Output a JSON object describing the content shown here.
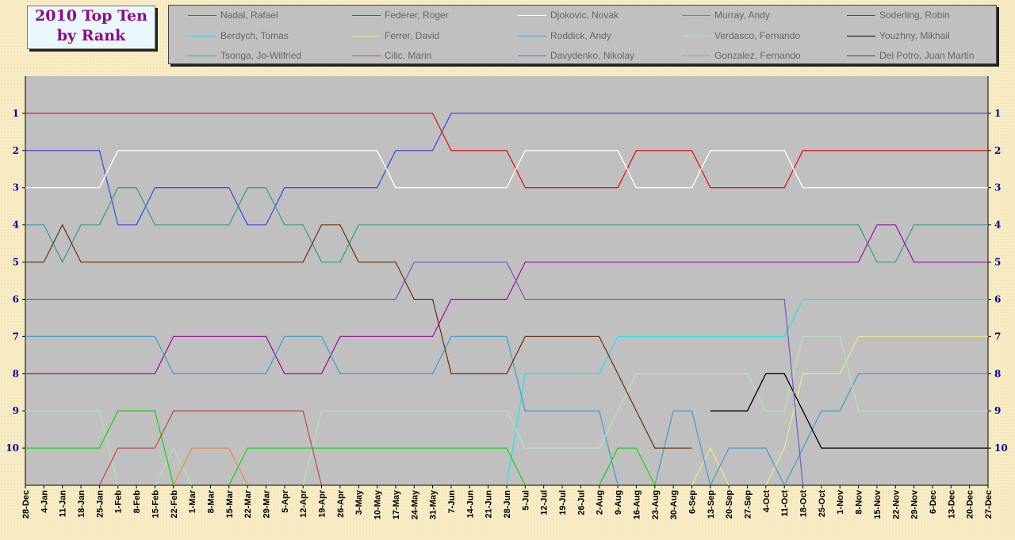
{
  "title": {
    "line1": "2010 Top Ten",
    "line2": "by Rank"
  },
  "chart_data": {
    "type": "line",
    "title": "2010 Top Ten by Rank",
    "y_axis": {
      "ticks": [
        1,
        2,
        3,
        4,
        5,
        6,
        7,
        8,
        9,
        10
      ],
      "range": [
        0,
        11
      ],
      "inverted": true
    },
    "grid": false,
    "legend_position": "top",
    "x": [
      "28-Dec",
      "4-Jan",
      "11-Jan",
      "18-Jan",
      "25-Jan",
      "1-Feb",
      "8-Feb",
      "15-Feb",
      "22-Feb",
      "1-Mar",
      "8-Mar",
      "15-Mar",
      "22-Mar",
      "29-Mar",
      "5-Apr",
      "12-Apr",
      "19-Apr",
      "26-Apr",
      "3-May",
      "10-May",
      "17-May",
      "24-May",
      "31-May",
      "7-Jun",
      "14-Jun",
      "21-Jun",
      "28-Jun",
      "5-Jul",
      "12-Jul",
      "19-Jul",
      "26-Jul",
      "2-Aug",
      "9-Aug",
      "16-Aug",
      "23-Aug",
      "30-Aug",
      "6-Sep",
      "13-Sep",
      "20-Sep",
      "27-Sep",
      "4-Oct",
      "11-Oct",
      "18-Oct",
      "25-Oct",
      "1-Nov",
      "8-Nov",
      "15-Nov",
      "22-Nov",
      "29-Nov",
      "6-Dec",
      "13-Dec",
      "20-Dec",
      "27-Dec"
    ],
    "series": [
      {
        "name": "Nadal, Rafael",
        "color": "#4a4ae0",
        "values": [
          2,
          2,
          2,
          2,
          2,
          4,
          4,
          3,
          3,
          3,
          3,
          3,
          4,
          4,
          3,
          3,
          3,
          3,
          3,
          3,
          2,
          2,
          2,
          1,
          1,
          1,
          1,
          1,
          1,
          1,
          1,
          1,
          1,
          1,
          1,
          1,
          1,
          1,
          1,
          1,
          1,
          1,
          1,
          1,
          1,
          1,
          1,
          1,
          1,
          1,
          1,
          1,
          1
        ]
      },
      {
        "name": "Federer, Roger",
        "color": "#e01818",
        "values": [
          1,
          1,
          1,
          1,
          1,
          1,
          1,
          1,
          1,
          1,
          1,
          1,
          1,
          1,
          1,
          1,
          1,
          1,
          1,
          1,
          1,
          1,
          1,
          2,
          2,
          2,
          2,
          3,
          3,
          3,
          3,
          3,
          3,
          2,
          2,
          2,
          2,
          3,
          3,
          3,
          3,
          3,
          2,
          2,
          2,
          2,
          2,
          2,
          2,
          2,
          2,
          2,
          2
        ]
      },
      {
        "name": "Djokovic, Novak",
        "color": "#ffffff",
        "values": [
          3,
          3,
          3,
          3,
          3,
          2,
          2,
          2,
          2,
          2,
          2,
          2,
          2,
          2,
          2,
          2,
          2,
          2,
          2,
          2,
          3,
          3,
          3,
          3,
          3,
          3,
          3,
          2,
          2,
          2,
          2,
          2,
          2,
          3,
          3,
          3,
          3,
          2,
          2,
          2,
          2,
          2,
          3,
          3,
          3,
          3,
          3,
          3,
          3,
          3,
          3,
          3,
          3
        ]
      },
      {
        "name": "Murray, Andy",
        "color": "#3aa08a",
        "values": [
          4,
          4,
          5,
          4,
          4,
          3,
          3,
          4,
          4,
          4,
          4,
          4,
          3,
          3,
          4,
          4,
          5,
          5,
          4,
          4,
          4,
          4,
          4,
          4,
          4,
          4,
          4,
          4,
          4,
          4,
          4,
          4,
          4,
          4,
          4,
          4,
          4,
          4,
          4,
          4,
          4,
          4,
          4,
          4,
          4,
          4,
          5,
          5,
          4,
          4,
          4,
          4,
          4
        ]
      },
      {
        "name": "Soderling, Robin",
        "color": "#9a1a9a",
        "values": [
          8,
          8,
          8,
          8,
          8,
          8,
          8,
          8,
          7,
          7,
          7,
          7,
          7,
          7,
          8,
          8,
          8,
          7,
          7,
          7,
          7,
          7,
          7,
          6,
          6,
          6,
          6,
          5,
          5,
          5,
          5,
          5,
          5,
          5,
          5,
          5,
          5,
          5,
          5,
          5,
          5,
          5,
          5,
          5,
          5,
          5,
          4,
          4,
          5,
          5,
          5,
          5,
          5
        ]
      },
      {
        "name": "Berdych, Tomas",
        "color": "#30e0e0",
        "values": [
          null,
          null,
          null,
          null,
          null,
          null,
          null,
          null,
          null,
          null,
          null,
          null,
          null,
          null,
          null,
          null,
          null,
          null,
          null,
          null,
          null,
          null,
          null,
          null,
          null,
          null,
          11,
          8,
          8,
          8,
          8,
          8,
          7,
          7,
          7,
          7,
          7,
          7,
          7,
          7,
          7,
          7,
          6,
          6,
          6,
          6,
          6,
          6,
          6,
          6,
          6,
          6,
          6
        ]
      },
      {
        "name": "Ferrer, David",
        "color": "#e8e890",
        "values": [
          null,
          null,
          null,
          null,
          null,
          null,
          null,
          null,
          null,
          null,
          null,
          null,
          null,
          null,
          null,
          null,
          null,
          null,
          null,
          null,
          null,
          null,
          null,
          null,
          null,
          null,
          null,
          null,
          null,
          null,
          null,
          null,
          null,
          null,
          null,
          null,
          11,
          10,
          11,
          null,
          11,
          10,
          8,
          8,
          8,
          7,
          7,
          7,
          7,
          7,
          7,
          7,
          7
        ]
      },
      {
        "name": "Roddick, Andy",
        "color": "#4aa0c0",
        "values": [
          7,
          7,
          7,
          7,
          7,
          7,
          7,
          7,
          8,
          8,
          8,
          8,
          8,
          8,
          7,
          7,
          7,
          8,
          8,
          8,
          8,
          8,
          8,
          7,
          7,
          7,
          7,
          9,
          9,
          9,
          9,
          9,
          11,
          null,
          11,
          9,
          9,
          11,
          10,
          10,
          10,
          11,
          10,
          9,
          9,
          8,
          8,
          8,
          8,
          8,
          8,
          8,
          8
        ]
      },
      {
        "name": "Verdasco, Fernando",
        "color": "#b8e0b8",
        "values": [
          9,
          9,
          9,
          9,
          9,
          11,
          null,
          11,
          10,
          11,
          null,
          null,
          null,
          null,
          null,
          11,
          9,
          9,
          9,
          9,
          9,
          9,
          9,
          9,
          9,
          9,
          9,
          10,
          10,
          10,
          10,
          10,
          9,
          8,
          8,
          8,
          8,
          8,
          8,
          8,
          9,
          9,
          7,
          7,
          7,
          9,
          9,
          9,
          9,
          9,
          9,
          9,
          9
        ]
      },
      {
        "name": "Youzhny, Mikhail",
        "color": "#000000",
        "values": [
          null,
          null,
          null,
          null,
          null,
          null,
          null,
          null,
          null,
          null,
          null,
          null,
          null,
          null,
          null,
          null,
          null,
          null,
          null,
          null,
          null,
          null,
          null,
          null,
          null,
          null,
          null,
          null,
          null,
          null,
          null,
          null,
          null,
          null,
          null,
          null,
          null,
          9,
          9,
          9,
          8,
          8,
          9,
          10,
          10,
          10,
          10,
          10,
          10,
          10,
          10,
          10,
          10
        ]
      },
      {
        "name": "Tsonga, Jo-Wilfried",
        "color": "#20d020",
        "values": [
          10,
          10,
          10,
          10,
          10,
          9,
          9,
          9,
          11,
          null,
          null,
          11,
          10,
          10,
          10,
          10,
          10,
          10,
          10,
          10,
          10,
          10,
          10,
          10,
          10,
          10,
          10,
          11,
          null,
          null,
          null,
          11,
          10,
          10,
          11,
          null,
          null,
          null,
          null,
          null,
          null,
          null,
          null,
          null,
          null,
          null,
          null,
          null,
          null,
          null,
          null,
          null,
          null
        ]
      },
      {
        "name": "Cilic, Marin",
        "color": "#c05050",
        "values": [
          null,
          null,
          null,
          null,
          11,
          10,
          10,
          10,
          9,
          9,
          9,
          9,
          9,
          9,
          9,
          9,
          11,
          null,
          null,
          null,
          null,
          null,
          null,
          null,
          null,
          null,
          null,
          null,
          null,
          null,
          null,
          null,
          null,
          null,
          null,
          null,
          null,
          null,
          null,
          null,
          null,
          null,
          null,
          null,
          null,
          null,
          null,
          null,
          null,
          null,
          null,
          null,
          null
        ]
      },
      {
        "name": "Davydenko, Nikolay",
        "color": "#7a60c0",
        "values": [
          6,
          6,
          6,
          6,
          6,
          6,
          6,
          6,
          6,
          6,
          6,
          6,
          6,
          6,
          6,
          6,
          6,
          6,
          6,
          6,
          6,
          5,
          5,
          5,
          5,
          5,
          5,
          6,
          6,
          6,
          6,
          6,
          6,
          6,
          6,
          6,
          6,
          6,
          6,
          6,
          6,
          6,
          11,
          null,
          null,
          null,
          null,
          null,
          null,
          null,
          null,
          null,
          null
        ]
      },
      {
        "name": "Gonzalez, Fernando",
        "color": "#e09050",
        "values": [
          null,
          null,
          null,
          null,
          null,
          null,
          null,
          null,
          11,
          10,
          10,
          10,
          11,
          null,
          null,
          null,
          null,
          null,
          null,
          null,
          null,
          null,
          null,
          null,
          null,
          null,
          null,
          null,
          null,
          null,
          null,
          null,
          null,
          null,
          null,
          null,
          null,
          null,
          null,
          null,
          null,
          null,
          null,
          null,
          null,
          null,
          null,
          null,
          null,
          null,
          null,
          null,
          null
        ]
      },
      {
        "name": "Del Potro, Juan Martin",
        "color": "#6a3a18",
        "values": [
          5,
          5,
          4,
          5,
          5,
          5,
          5,
          5,
          5,
          5,
          5,
          5,
          5,
          5,
          5,
          5,
          4,
          4,
          5,
          5,
          5,
          6,
          6,
          8,
          8,
          8,
          8,
          7,
          7,
          7,
          7,
          7,
          8,
          9,
          10,
          10,
          10,
          null,
          null,
          null,
          null,
          null,
          null,
          null,
          null,
          null,
          null,
          null,
          null,
          null,
          null,
          null,
          null
        ]
      }
    ]
  }
}
